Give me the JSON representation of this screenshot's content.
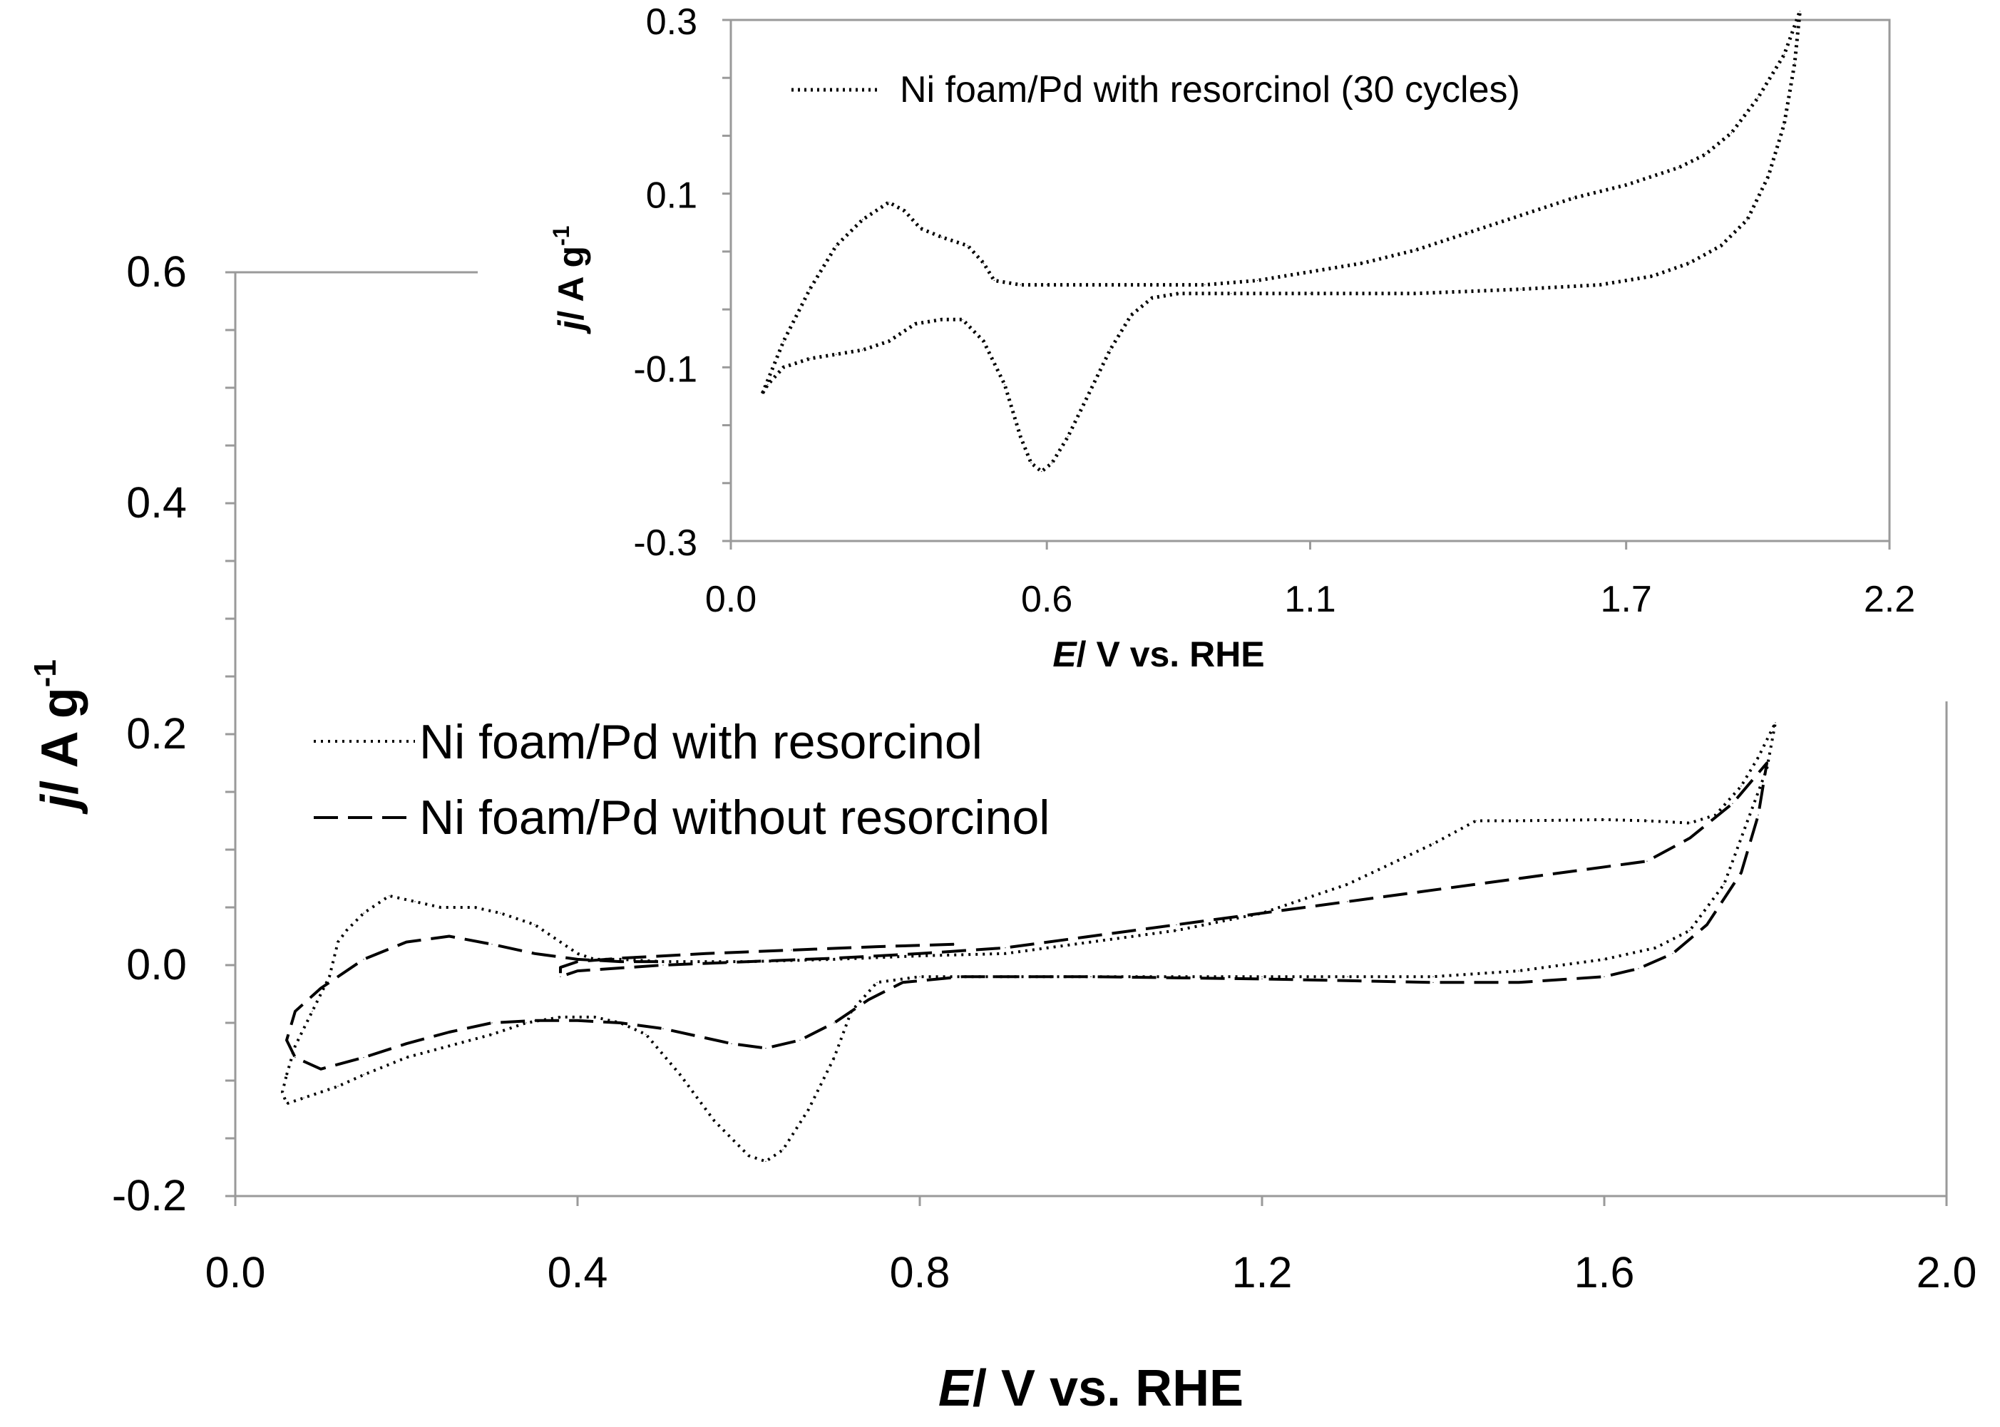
{
  "chart_data": [
    {
      "id": "main",
      "type": "line",
      "title": "",
      "xlabel_italic": "E",
      "xlabel_rest": "/ V  vs. RHE",
      "ylabel_italic": "j",
      "ylabel_rest": "/ A g",
      "ylabel_sup": "-1",
      "xlim": [
        0.0,
        2.0
      ],
      "ylim": [
        -0.2,
        0.6
      ],
      "x_ticks": [
        "0.0",
        "0.4",
        "0.8",
        "1.2",
        "1.6",
        "2.0"
      ],
      "y_ticks": [
        "-0.2",
        "0.0",
        "0.2",
        "0.4",
        "0.6"
      ],
      "legend_position": "center-left",
      "series": [
        {
          "name": "Ni foam/Pd with resorcinol",
          "style": "dotted",
          "x": [
            0.06,
            0.07,
            0.09,
            0.11,
            0.12,
            0.13,
            0.15,
            0.18,
            0.21,
            0.24,
            0.28,
            0.31,
            0.35,
            0.38,
            0.4,
            0.42,
            0.45,
            0.5,
            0.6,
            0.7,
            0.8,
            0.9,
            1.0,
            1.1,
            1.2,
            1.3,
            1.4,
            1.45,
            1.5,
            1.6,
            1.65,
            1.7,
            1.73,
            1.76,
            1.78,
            1.8,
            1.79,
            1.77,
            1.74,
            1.7,
            1.66,
            1.6,
            1.5,
            1.4,
            1.3,
            1.2,
            1.0,
            0.9,
            0.8,
            0.75,
            0.72,
            0.7,
            0.67,
            0.64,
            0.62,
            0.6,
            0.56,
            0.52,
            0.48,
            0.45,
            0.42,
            0.38,
            0.34,
            0.3,
            0.25,
            0.2,
            0.15,
            0.12,
            0.1,
            0.08,
            0.06,
            0.055,
            0.06
          ],
          "y": [
            -0.095,
            -0.07,
            -0.04,
            -0.01,
            0.02,
            0.03,
            0.045,
            0.06,
            0.055,
            0.05,
            0.05,
            0.045,
            0.035,
            0.02,
            0.01,
            0.005,
            0.005,
            0.003,
            0.003,
            0.005,
            0.008,
            0.01,
            0.02,
            0.03,
            0.045,
            0.07,
            0.105,
            0.125,
            0.125,
            0.126,
            0.125,
            0.123,
            0.13,
            0.155,
            0.18,
            0.21,
            0.17,
            0.13,
            0.07,
            0.03,
            0.015,
            0.005,
            -0.005,
            -0.01,
            -0.01,
            -0.01,
            -0.01,
            -0.01,
            -0.01,
            -0.015,
            -0.04,
            -0.08,
            -0.125,
            -0.16,
            -0.17,
            -0.165,
            -0.135,
            -0.095,
            -0.06,
            -0.05,
            -0.045,
            -0.045,
            -0.05,
            -0.06,
            -0.07,
            -0.08,
            -0.095,
            -0.105,
            -0.11,
            -0.115,
            -0.12,
            -0.11,
            -0.095
          ]
        },
        {
          "name": "Ni foam/Pd without resorcinol",
          "style": "dashed",
          "x": [
            0.84,
            0.75,
            0.65,
            0.55,
            0.45,
            0.4,
            0.38,
            0.38,
            0.4,
            0.5,
            0.6,
            0.7,
            0.8,
            0.9,
            1.0,
            1.1,
            1.2,
            1.3,
            1.4,
            1.5,
            1.6,
            1.65,
            1.7,
            1.75,
            1.79,
            1.78,
            1.76,
            1.72,
            1.68,
            1.64,
            1.6,
            1.5,
            1.4,
            1.2,
            1.0,
            0.85,
            0.78,
            0.74,
            0.7,
            0.66,
            0.62,
            0.58,
            0.5,
            0.45,
            0.4,
            0.35,
            0.3,
            0.25,
            0.2,
            0.15,
            0.1,
            0.07,
            0.06,
            0.07,
            0.1,
            0.15,
            0.2,
            0.25,
            0.3,
            0.35,
            0.4,
            0.45,
            0.5
          ],
          "y": [
            0.018,
            0.016,
            0.013,
            0.01,
            0.006,
            0.003,
            -0.002,
            -0.01,
            -0.005,
            0.0,
            0.003,
            0.006,
            0.01,
            0.015,
            0.025,
            0.035,
            0.045,
            0.055,
            0.065,
            0.075,
            0.085,
            0.09,
            0.11,
            0.14,
            0.175,
            0.13,
            0.08,
            0.035,
            0.01,
            -0.003,
            -0.01,
            -0.015,
            -0.015,
            -0.012,
            -0.01,
            -0.01,
            -0.015,
            -0.03,
            -0.05,
            -0.065,
            -0.072,
            -0.068,
            -0.055,
            -0.05,
            -0.048,
            -0.048,
            -0.05,
            -0.058,
            -0.068,
            -0.08,
            -0.09,
            -0.08,
            -0.065,
            -0.04,
            -0.02,
            0.005,
            0.02,
            0.025,
            0.018,
            0.01,
            0.005,
            0.003,
            0.003
          ]
        }
      ]
    },
    {
      "id": "inset",
      "type": "line",
      "title": "",
      "xlabel_italic": "E",
      "xlabel_rest": "/ V  vs. RHE",
      "ylabel_italic": "j",
      "ylabel_rest": "/ A g",
      "ylabel_sup": "-1",
      "xlim": [
        0.0,
        2.2
      ],
      "ylim": [
        -0.3,
        0.3
      ],
      "x_ticks": [
        "0.0",
        "0.6",
        "1.1",
        "1.7",
        "2.2"
      ],
      "y_ticks": [
        "-0.3",
        "-0.1",
        "0.1",
        "0.3"
      ],
      "legend_position": "top-left",
      "series": [
        {
          "name": "Ni foam/Pd with resorcinol (30 cycles)",
          "style": "dotted",
          "x": [
            0.06,
            0.1,
            0.15,
            0.2,
            0.25,
            0.3,
            0.33,
            0.36,
            0.4,
            0.45,
            0.48,
            0.5,
            0.55,
            0.6,
            0.7,
            0.8,
            0.9,
            1.0,
            1.1,
            1.2,
            1.3,
            1.4,
            1.5,
            1.6,
            1.7,
            1.8,
            1.85,
            1.9,
            1.95,
            2.0,
            2.03,
            2.02,
            2.0,
            1.97,
            1.93,
            1.88,
            1.82,
            1.75,
            1.65,
            1.5,
            1.3,
            1.1,
            0.95,
            0.85,
            0.8,
            0.76,
            0.72,
            0.68,
            0.64,
            0.61,
            0.59,
            0.57,
            0.55,
            0.52,
            0.48,
            0.44,
            0.4,
            0.35,
            0.3,
            0.25,
            0.2,
            0.15,
            0.1,
            0.07,
            0.06
          ],
          "y": [
            -0.13,
            -0.07,
            -0.01,
            0.04,
            0.07,
            0.09,
            0.08,
            0.06,
            0.05,
            0.04,
            0.02,
            0.0,
            -0.005,
            -0.005,
            -0.005,
            -0.005,
            -0.005,
            0.0,
            0.01,
            0.02,
            0.035,
            0.055,
            0.075,
            0.095,
            0.11,
            0.13,
            0.145,
            0.17,
            0.21,
            0.26,
            0.31,
            0.25,
            0.18,
            0.12,
            0.07,
            0.04,
            0.02,
            0.005,
            -0.005,
            -0.01,
            -0.015,
            -0.015,
            -0.015,
            -0.015,
            -0.02,
            -0.04,
            -0.08,
            -0.13,
            -0.18,
            -0.21,
            -0.22,
            -0.21,
            -0.18,
            -0.12,
            -0.07,
            -0.045,
            -0.045,
            -0.05,
            -0.07,
            -0.08,
            -0.085,
            -0.09,
            -0.1,
            -0.12,
            -0.13
          ]
        }
      ]
    }
  ]
}
